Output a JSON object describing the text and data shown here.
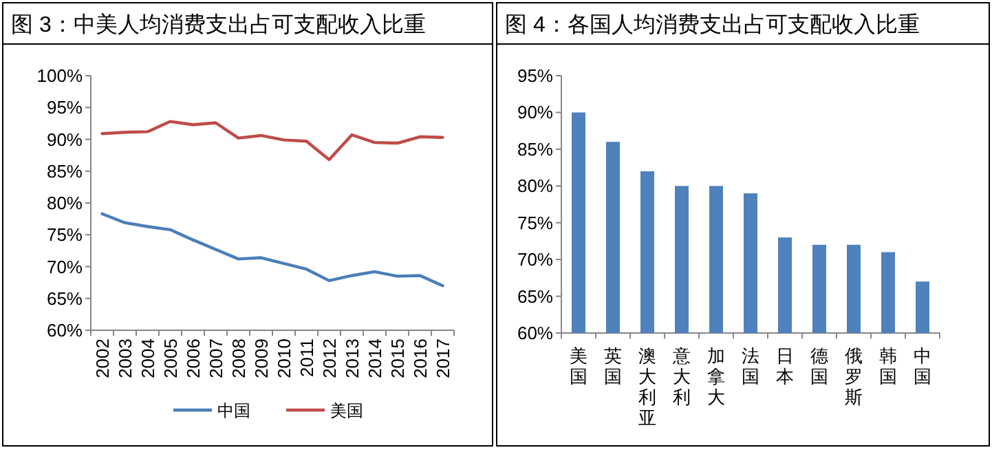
{
  "chart_data": [
    {
      "type": "line",
      "title": "图 3：中美人均消费支出占可支配收入比重",
      "categories": [
        "2002",
        "2003",
        "2004",
        "2005",
        "2006",
        "2007",
        "2008",
        "2009",
        "2010",
        "2011",
        "2012",
        "2013",
        "2014",
        "2015",
        "2016",
        "2017"
      ],
      "series": [
        {
          "name": "中国",
          "color": "#4a7ebb",
          "values": [
            78.3,
            76.9,
            76.3,
            75.8,
            74.2,
            72.7,
            71.2,
            71.4,
            70.5,
            69.6,
            67.8,
            68.6,
            69.2,
            68.5,
            68.6,
            67.0
          ]
        },
        {
          "name": "美国",
          "color": "#be4b48",
          "values": [
            90.9,
            91.1,
            91.2,
            92.8,
            92.3,
            92.6,
            90.2,
            90.6,
            89.9,
            89.7,
            86.8,
            90.7,
            89.5,
            89.4,
            90.4,
            90.3
          ]
        }
      ],
      "ylim": [
        60,
        100
      ],
      "yticks": [
        {
          "value": 60,
          "label": "60%"
        },
        {
          "value": 65,
          "label": "65%"
        },
        {
          "value": 70,
          "label": "70%"
        },
        {
          "value": 75,
          "label": "75%"
        },
        {
          "value": 80,
          "label": "80%"
        },
        {
          "value": 85,
          "label": "85%"
        },
        {
          "value": 90,
          "label": "90%"
        },
        {
          "value": 95,
          "label": "95%"
        },
        {
          "value": 100,
          "label": "100%"
        }
      ],
      "legend": "bottom",
      "marker": "none",
      "line_style": "solid"
    },
    {
      "type": "bar",
      "title": "图 4：各国人均消费支出占可支配收入比重",
      "categories": [
        "美国",
        "英国",
        "澳大利亚",
        "意大利",
        "加拿大",
        "法国",
        "日本",
        "德国",
        "俄罗斯",
        "韩国",
        "中国"
      ],
      "values": [
        90,
        86,
        82,
        80,
        80,
        79,
        73,
        72,
        72,
        71,
        67
      ],
      "color": "#4f81bd",
      "ylim": [
        60,
        95
      ],
      "yticks": [
        {
          "value": 60,
          "label": "60%"
        },
        {
          "value": 65,
          "label": "65%"
        },
        {
          "value": 70,
          "label": "70%"
        },
        {
          "value": 75,
          "label": "75%"
        },
        {
          "value": 80,
          "label": "80%"
        },
        {
          "value": 85,
          "label": "85%"
        },
        {
          "value": 90,
          "label": "90%"
        },
        {
          "value": 95,
          "label": "95%"
        }
      ]
    }
  ]
}
